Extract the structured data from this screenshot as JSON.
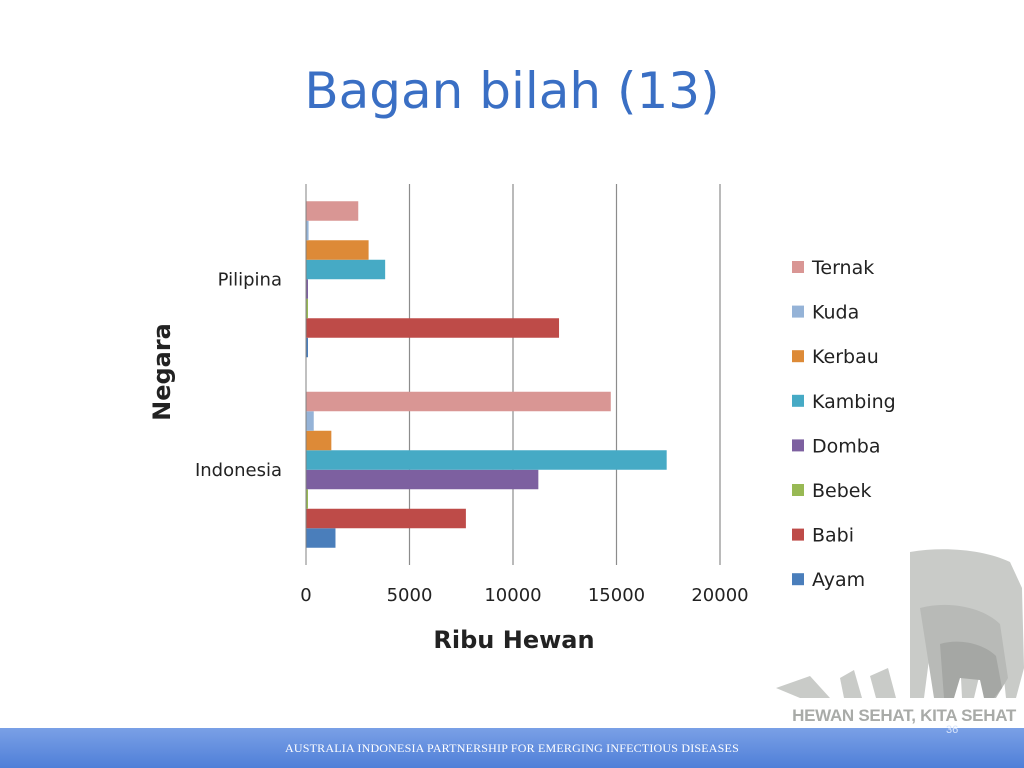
{
  "slide": {
    "title": "Bagan bilah (13)",
    "footer_text": "AUSTRALIA INDONESIA PARTNERSHIP FOR EMERGING INFECTIOUS DISEASES",
    "page_number": "36",
    "logo_text": "HEWAN SEHAT, KITA SEHAT"
  },
  "chart_data": {
    "type": "bar",
    "orientation": "horizontal",
    "title": "",
    "xlabel": "Ribu Hewan",
    "ylabel": "Negara",
    "xlim": [
      0,
      20000
    ],
    "xticks": [
      0,
      5000,
      10000,
      15000,
      20000
    ],
    "grid": "vertical",
    "legend_position": "right",
    "categories": [
      "Indonesia",
      "Pilipina"
    ],
    "series": [
      {
        "name": "Ayam",
        "color": "#4a7ebb",
        "values": [
          1400,
          50
        ]
      },
      {
        "name": "Babi",
        "color": "#be4b48",
        "values": [
          7700,
          12200
        ]
      },
      {
        "name": "Bebek",
        "color": "#98b954",
        "values": [
          50,
          50
        ]
      },
      {
        "name": "Domba",
        "color": "#7d60a0",
        "values": [
          11200,
          30
        ]
      },
      {
        "name": "Kambing",
        "color": "#46aac5",
        "values": [
          17400,
          3800
        ]
      },
      {
        "name": "Kerbau",
        "color": "#dd8a37",
        "values": [
          1200,
          3000
        ]
      },
      {
        "name": "Kuda",
        "color": "#95b3d7",
        "values": [
          350,
          100
        ]
      },
      {
        "name": "Ternak",
        "color": "#d99694",
        "values": [
          14700,
          2500
        ]
      }
    ]
  }
}
